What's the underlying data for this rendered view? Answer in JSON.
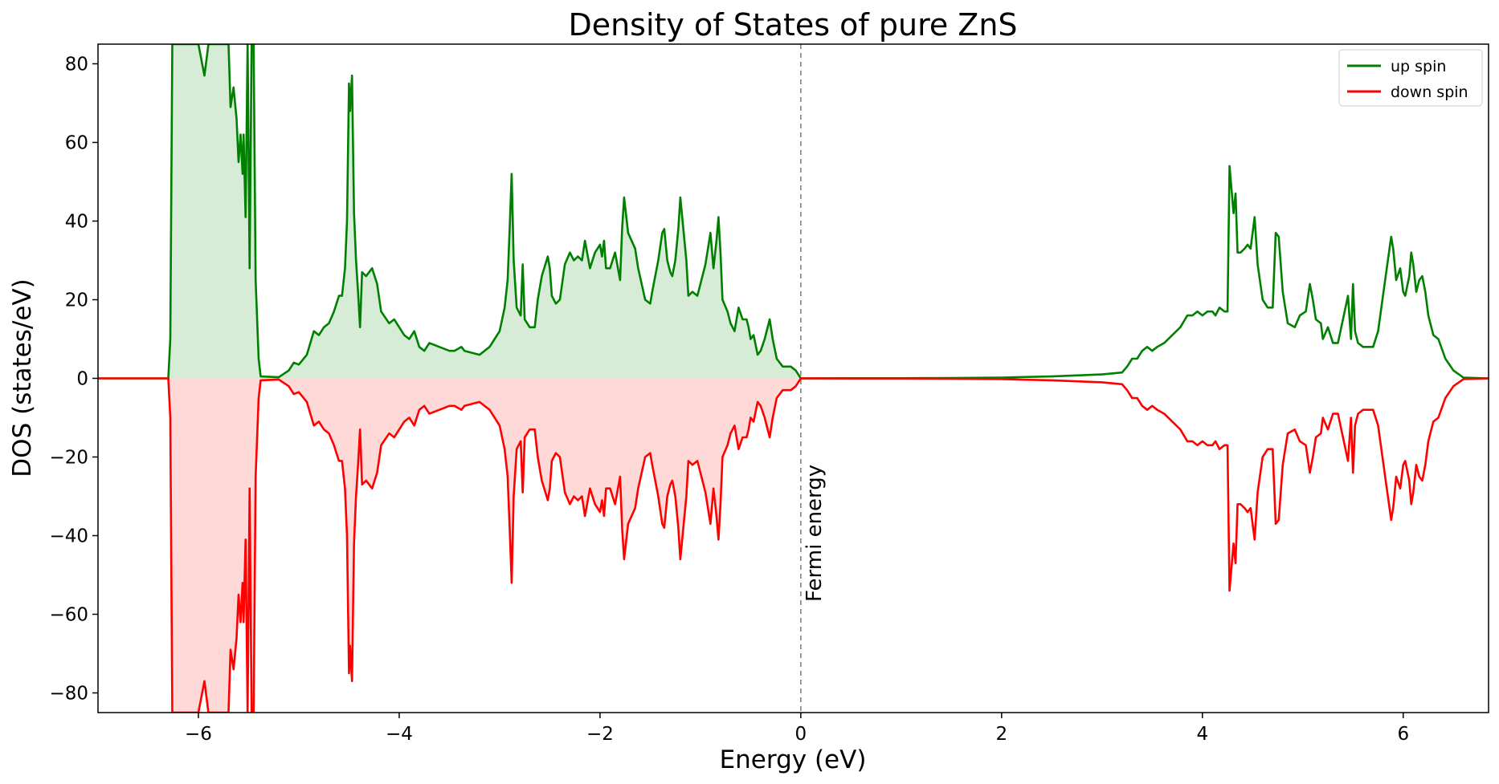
{
  "chart_data": {
    "type": "line",
    "title": "Density of States of pure ZnS",
    "xlabel": "Energy (eV)",
    "ylabel": "DOS (states/eV)",
    "xlim": [
      -7.0,
      6.85
    ],
    "ylim": [
      -85,
      85
    ],
    "xticks": [
      -6,
      -4,
      -2,
      0,
      2,
      4,
      6
    ],
    "xtick_labels": [
      "−6",
      "−4",
      "−2",
      "0",
      "2",
      "4",
      "6"
    ],
    "yticks": [
      80,
      60,
      40,
      20,
      0,
      -20,
      -40,
      -60,
      -80
    ],
    "ytick_labels": [
      "80",
      "60",
      "40",
      "20",
      "0",
      "−20",
      "−40",
      "−60",
      "−80"
    ],
    "grid": false,
    "legend_position": "top-right",
    "fermi_level": 0,
    "fermi_annotation": "Fermi energy",
    "series": [
      {
        "name": "up spin",
        "color": "#008000",
        "fill": "#d6ecd6",
        "fill_range": [
          -6.3,
          0
        ],
        "points": [
          [
            -7.0,
            0
          ],
          [
            -6.35,
            0
          ],
          [
            -6.3,
            0
          ],
          [
            -6.28,
            10
          ],
          [
            -6.26,
            85
          ],
          [
            -6.22,
            85
          ],
          [
            -6.0,
            85
          ],
          [
            -5.94,
            77
          ],
          [
            -5.9,
            85
          ],
          [
            -5.7,
            85
          ],
          [
            -5.68,
            69
          ],
          [
            -5.65,
            74
          ],
          [
            -5.62,
            66
          ],
          [
            -5.6,
            55
          ],
          [
            -5.58,
            62
          ],
          [
            -5.56,
            52
          ],
          [
            -5.55,
            62
          ],
          [
            -5.53,
            41
          ],
          [
            -5.51,
            85
          ],
          [
            -5.49,
            28
          ],
          [
            -5.47,
            85
          ],
          [
            -5.45,
            85
          ],
          [
            -5.43,
            25
          ],
          [
            -5.4,
            5
          ],
          [
            -5.38,
            0.5
          ],
          [
            -5.2,
            0.3
          ],
          [
            -5.1,
            2
          ],
          [
            -5.05,
            4
          ],
          [
            -5.0,
            3.5
          ],
          [
            -4.92,
            6
          ],
          [
            -4.85,
            12
          ],
          [
            -4.8,
            11
          ],
          [
            -4.75,
            13
          ],
          [
            -4.7,
            14
          ],
          [
            -4.65,
            17
          ],
          [
            -4.6,
            21
          ],
          [
            -4.57,
            21
          ],
          [
            -4.54,
            28
          ],
          [
            -4.52,
            40
          ],
          [
            -4.5,
            75
          ],
          [
            -4.49,
            68
          ],
          [
            -4.47,
            77
          ],
          [
            -4.45,
            42
          ],
          [
            -4.43,
            30
          ],
          [
            -4.41,
            22
          ],
          [
            -4.39,
            13
          ],
          [
            -4.37,
            27
          ],
          [
            -4.33,
            26
          ],
          [
            -4.3,
            27
          ],
          [
            -4.27,
            28
          ],
          [
            -4.22,
            24
          ],
          [
            -4.18,
            17
          ],
          [
            -4.1,
            14
          ],
          [
            -4.05,
            15
          ],
          [
            -3.95,
            11
          ],
          [
            -3.9,
            10
          ],
          [
            -3.85,
            12
          ],
          [
            -3.8,
            8
          ],
          [
            -3.75,
            7
          ],
          [
            -3.7,
            9
          ],
          [
            -3.6,
            8
          ],
          [
            -3.5,
            7
          ],
          [
            -3.45,
            7
          ],
          [
            -3.38,
            8
          ],
          [
            -3.35,
            7
          ],
          [
            -3.2,
            6
          ],
          [
            -3.1,
            8
          ],
          [
            -3.05,
            10
          ],
          [
            -3.0,
            12
          ],
          [
            -2.95,
            18
          ],
          [
            -2.92,
            25
          ],
          [
            -2.9,
            38
          ],
          [
            -2.88,
            52
          ],
          [
            -2.86,
            30
          ],
          [
            -2.83,
            18
          ],
          [
            -2.79,
            16
          ],
          [
            -2.77,
            29
          ],
          [
            -2.75,
            15
          ],
          [
            -2.7,
            13
          ],
          [
            -2.65,
            13
          ],
          [
            -2.62,
            20
          ],
          [
            -2.58,
            26
          ],
          [
            -2.52,
            31
          ],
          [
            -2.5,
            28
          ],
          [
            -2.48,
            21
          ],
          [
            -2.44,
            19
          ],
          [
            -2.4,
            20
          ],
          [
            -2.35,
            29
          ],
          [
            -2.3,
            32
          ],
          [
            -2.26,
            30
          ],
          [
            -2.22,
            31
          ],
          [
            -2.18,
            30
          ],
          [
            -2.15,
            35
          ],
          [
            -2.1,
            28
          ],
          [
            -2.05,
            32
          ],
          [
            -2.0,
            34
          ],
          [
            -1.98,
            31
          ],
          [
            -1.96,
            35
          ],
          [
            -1.94,
            28
          ],
          [
            -1.9,
            28
          ],
          [
            -1.85,
            32
          ],
          [
            -1.8,
            25
          ],
          [
            -1.78,
            38
          ],
          [
            -1.76,
            46
          ],
          [
            -1.72,
            37
          ],
          [
            -1.65,
            33
          ],
          [
            -1.62,
            28
          ],
          [
            -1.55,
            20
          ],
          [
            -1.5,
            19
          ],
          [
            -1.48,
            22
          ],
          [
            -1.42,
            30
          ],
          [
            -1.38,
            37
          ],
          [
            -1.36,
            38
          ],
          [
            -1.33,
            30
          ],
          [
            -1.3,
            27
          ],
          [
            -1.28,
            26
          ],
          [
            -1.25,
            30
          ],
          [
            -1.22,
            38
          ],
          [
            -1.2,
            46
          ],
          [
            -1.17,
            38
          ],
          [
            -1.14,
            30
          ],
          [
            -1.12,
            21
          ],
          [
            -1.08,
            22
          ],
          [
            -1.03,
            21
          ],
          [
            -1.0,
            24
          ],
          [
            -0.95,
            29
          ],
          [
            -0.9,
            37
          ],
          [
            -0.87,
            28
          ],
          [
            -0.84,
            35
          ],
          [
            -0.82,
            41
          ],
          [
            -0.8,
            32
          ],
          [
            -0.78,
            20
          ],
          [
            -0.73,
            17
          ],
          [
            -0.7,
            14
          ],
          [
            -0.66,
            12
          ],
          [
            -0.62,
            18
          ],
          [
            -0.58,
            15
          ],
          [
            -0.54,
            15
          ],
          [
            -0.52,
            13
          ],
          [
            -0.5,
            10
          ],
          [
            -0.47,
            11
          ],
          [
            -0.43,
            6
          ],
          [
            -0.4,
            7
          ],
          [
            -0.36,
            10
          ],
          [
            -0.31,
            15
          ],
          [
            -0.28,
            10
          ],
          [
            -0.24,
            5
          ],
          [
            -0.18,
            3
          ],
          [
            -0.1,
            3
          ],
          [
            -0.05,
            2
          ],
          [
            0,
            0
          ],
          [
            0.5,
            0.05
          ],
          [
            1.0,
            0.05
          ],
          [
            1.5,
            0.1
          ],
          [
            2.0,
            0.2
          ],
          [
            2.5,
            0.5
          ],
          [
            3.0,
            1.0
          ],
          [
            3.2,
            1.5
          ],
          [
            3.25,
            3
          ],
          [
            3.3,
            5
          ],
          [
            3.35,
            5
          ],
          [
            3.4,
            7
          ],
          [
            3.45,
            8
          ],
          [
            3.5,
            7
          ],
          [
            3.55,
            8
          ],
          [
            3.62,
            9
          ],
          [
            3.7,
            11
          ],
          [
            3.78,
            13
          ],
          [
            3.85,
            16
          ],
          [
            3.9,
            16
          ],
          [
            3.95,
            17
          ],
          [
            4.0,
            16
          ],
          [
            4.05,
            17
          ],
          [
            4.1,
            17
          ],
          [
            4.13,
            16
          ],
          [
            4.17,
            18
          ],
          [
            4.22,
            17
          ],
          [
            4.25,
            17
          ],
          [
            4.27,
            54
          ],
          [
            4.29,
            48
          ],
          [
            4.31,
            42
          ],
          [
            4.33,
            47
          ],
          [
            4.35,
            32
          ],
          [
            4.38,
            32
          ],
          [
            4.42,
            33
          ],
          [
            4.45,
            34
          ],
          [
            4.48,
            33
          ],
          [
            4.52,
            41
          ],
          [
            4.55,
            29
          ],
          [
            4.6,
            20
          ],
          [
            4.65,
            18
          ],
          [
            4.7,
            18
          ],
          [
            4.73,
            37
          ],
          [
            4.76,
            36
          ],
          [
            4.8,
            22
          ],
          [
            4.85,
            14
          ],
          [
            4.92,
            13
          ],
          [
            4.97,
            16
          ],
          [
            5.03,
            17
          ],
          [
            5.07,
            24
          ],
          [
            5.1,
            20
          ],
          [
            5.13,
            15
          ],
          [
            5.18,
            14
          ],
          [
            5.2,
            10
          ],
          [
            5.25,
            13
          ],
          [
            5.3,
            9
          ],
          [
            5.35,
            9
          ],
          [
            5.4,
            15
          ],
          [
            5.45,
            21
          ],
          [
            5.48,
            10
          ],
          [
            5.5,
            24
          ],
          [
            5.52,
            12
          ],
          [
            5.55,
            9
          ],
          [
            5.6,
            8
          ],
          [
            5.7,
            8
          ],
          [
            5.75,
            12
          ],
          [
            5.82,
            25
          ],
          [
            5.88,
            36
          ],
          [
            5.9,
            33
          ],
          [
            5.93,
            25
          ],
          [
            5.97,
            28
          ],
          [
            6.0,
            22
          ],
          [
            6.02,
            21
          ],
          [
            6.06,
            26
          ],
          [
            6.08,
            32
          ],
          [
            6.1,
            29
          ],
          [
            6.13,
            22
          ],
          [
            6.16,
            25
          ],
          [
            6.19,
            26
          ],
          [
            6.22,
            22
          ],
          [
            6.25,
            16
          ],
          [
            6.3,
            11
          ],
          [
            6.35,
            10
          ],
          [
            6.42,
            5
          ],
          [
            6.5,
            2
          ],
          [
            6.6,
            0.2
          ],
          [
            6.85,
            0
          ]
        ]
      },
      {
        "name": "down spin",
        "color": "#ff0000",
        "fill": "#ffd8d8",
        "fill_range": [
          -6.3,
          0
        ],
        "mirror_of": "up spin"
      }
    ]
  }
}
